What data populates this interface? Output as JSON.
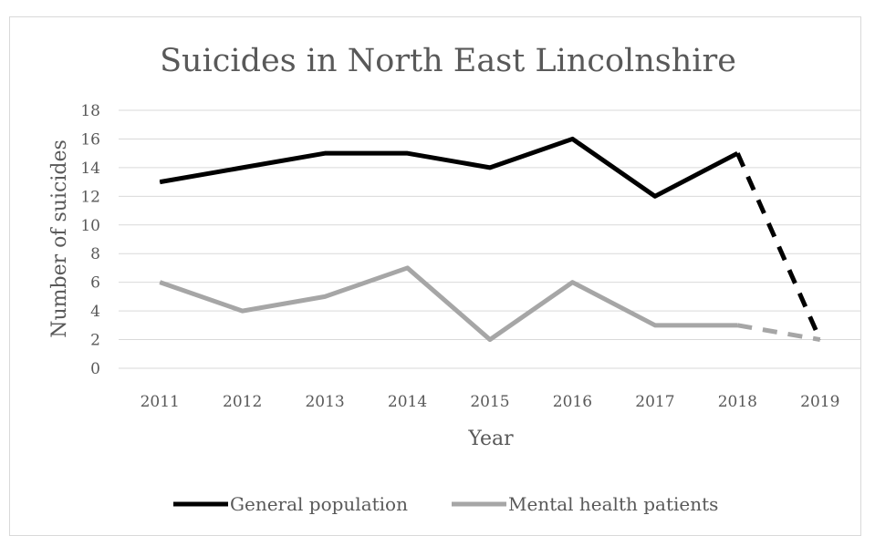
{
  "chart_data": {
    "type": "line",
    "title": "Suicides in North East Lincolnshire",
    "xlabel": "Year",
    "ylabel": "Number of suicides",
    "categories": [
      "2011",
      "2012",
      "2013",
      "2014",
      "2015",
      "2016",
      "2017",
      "2018",
      "2019"
    ],
    "ylim": [
      0,
      18
    ],
    "yticks": [
      0,
      2,
      4,
      6,
      8,
      10,
      12,
      14,
      16,
      18
    ],
    "grid": true,
    "legend_position": "bottom",
    "series": [
      {
        "name": "General population",
        "values": [
          13,
          14,
          15,
          15,
          14,
          16,
          12,
          15,
          2
        ],
        "color": "#000000",
        "dashed_from_index": 7
      },
      {
        "name": "Mental health patients",
        "values": [
          6,
          4,
          5,
          7,
          2,
          6,
          3,
          3,
          2
        ],
        "color": "#a6a6a6",
        "dashed_from_index": 7
      }
    ]
  }
}
